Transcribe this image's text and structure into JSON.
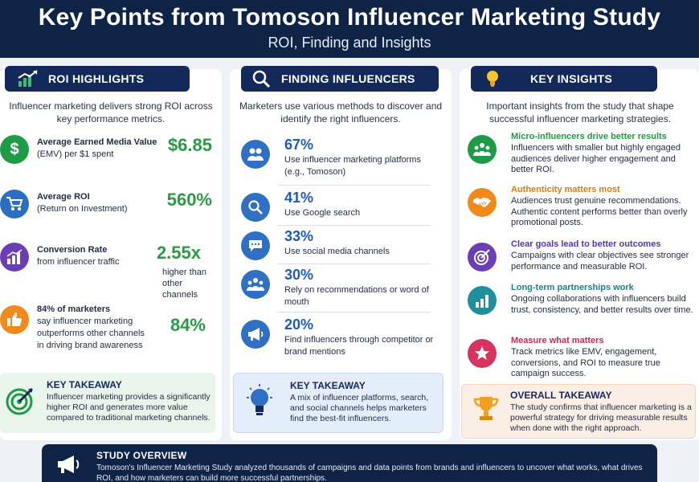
{
  "header": {
    "title": "Key Points from Tomoson Influencer Marketing Study",
    "subtitle": "ROI, Finding and Insights"
  },
  "roi": {
    "heading": "ROI HIGHLIGHTS",
    "intro": "Influencer marketing delivers strong ROI across key performance metrics.",
    "items": [
      {
        "label_bold": "Average Earned Media Value",
        "label": "(EMV) per $1 spent",
        "value": "$6.85",
        "sub": "",
        "color": "#1f9a46",
        "icon": "dollar-icon"
      },
      {
        "label_bold": "Average ROI",
        "label": "(Return on Investment)",
        "value": "560%",
        "sub": "",
        "color": "#2b6fc2",
        "icon": "cart-icon"
      },
      {
        "label_bold": "Conversion Rate",
        "label": "from influencer traffic",
        "value": "2.55x",
        "sub": "higher than other channels",
        "color": "#6a3fb5",
        "icon": "chart-icon"
      },
      {
        "label_bold": "84% of marketers",
        "label": "say influencer marketing outperforms other channels in driving brand awareness",
        "value": "84%",
        "sub": "",
        "color": "#f08a1c",
        "icon": "thumbs-up-icon"
      }
    ],
    "takeaway_heading": "KEY TAKEAWAY",
    "takeaway_text": "Influencer marketing provides a significantly higher ROI and generates more value compared to traditional marketing channels."
  },
  "finding": {
    "heading": "FINDING INFLUENCERS",
    "intro": "Marketers use various methods to discover and identify the right influencers.",
    "items": [
      {
        "pct": "67%",
        "desc": "Use influencer marketing platforms (e.g., Tomoson)",
        "icon": "users-icon"
      },
      {
        "pct": "41%",
        "desc": "Use Google search",
        "icon": "search-icon"
      },
      {
        "pct": "33%",
        "desc": "Use social media channels",
        "icon": "chat-icon"
      },
      {
        "pct": "30%",
        "desc": "Rely on recommendations or word of mouth",
        "icon": "group-icon"
      },
      {
        "pct": "20%",
        "desc": "Find influencers through competitor or brand mentions",
        "icon": "megaphone-icon"
      }
    ],
    "takeaway_heading": "KEY TAKEAWAY",
    "takeaway_text": "A mix of influencer platforms, search, and social channels helps marketers find the best-fit influencers."
  },
  "insights": {
    "heading": "KEY INSIGHTS",
    "intro": "Important insights from the study that shape successful influencer marketing strategies.",
    "items": [
      {
        "title": "Micro-influencers drive better results",
        "desc": "Influencers with smaller but highly engaged audiences deliver higher engagement and better ROI.",
        "color": "#1f9a46",
        "icon": "users-icon"
      },
      {
        "title": "Authenticity matters most",
        "desc": "Audiences trust genuine recommendations. Authentic content performs better than overly promotional posts.",
        "color": "#f08a1c",
        "icon": "handshake-icon"
      },
      {
        "title": "Clear goals lead to better outcomes",
        "desc": "Campaigns with clear objectives see stronger performance and measurable ROI.",
        "color": "#6a3fb5",
        "icon": "target-icon"
      },
      {
        "title": "Long-term partnerships work",
        "desc": "Ongoing collaborations with influencers build trust, consistency, and better results over time.",
        "color": "#1f8f9a",
        "icon": "bar-chart-icon"
      },
      {
        "title": "Measure what matters",
        "desc": "Track metrics like EMV, engagement, conversions, and ROI to measure true campaign success.",
        "color": "#d6335e",
        "icon": "star-icon"
      }
    ],
    "takeaway_heading": "OVERALL TAKEAWAY",
    "takeaway_text": "The study confirms that influencer marketing is a powerful strategy for driving measurable results when done with the right approach."
  },
  "overview": {
    "heading": "STUDY OVERVIEW",
    "text": "Tomoson's Influencer Marketing Study analyzed thousands of campaigns and data points from brands and influencers to uncover what works, what drives ROI, and how marketers can build more successful partnerships."
  }
}
